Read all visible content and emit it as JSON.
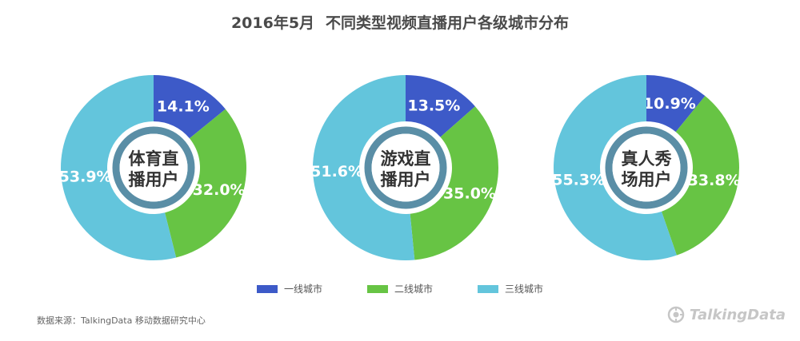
{
  "title": {
    "date": "2016年5月",
    "text": "不同类型视频直播用户各级城市分布"
  },
  "colors": {
    "tier1": "#3d5ac8",
    "tier2": "#67c444",
    "tier3": "#63c5dc",
    "ring": "#5a8ea6",
    "title": "#4a4a4a"
  },
  "chart_data": [
    {
      "type": "pie",
      "center_label": [
        "体育直",
        "播用户"
      ],
      "categories": [
        "一线城市",
        "二线城市",
        "三线城市"
      ],
      "values": [
        14.1,
        32.0,
        53.9
      ],
      "labels": [
        "14.1%",
        "32.0%",
        "53.9%"
      ]
    },
    {
      "type": "pie",
      "center_label": [
        "游戏直",
        "播用户"
      ],
      "categories": [
        "一线城市",
        "二线城市",
        "三线城市"
      ],
      "values": [
        13.5,
        35.0,
        51.6
      ],
      "labels": [
        "13.5%",
        "35.0%",
        "51.6%"
      ]
    },
    {
      "type": "pie",
      "center_label": [
        "真人秀",
        "场用户"
      ],
      "categories": [
        "一线城市",
        "二线城市",
        "三线城市"
      ],
      "values": [
        10.9,
        33.8,
        55.3
      ],
      "labels": [
        "10.9%",
        "33.8%",
        "55.3%"
      ]
    }
  ],
  "legend": [
    "一线城市",
    "二线城市",
    "三线城市"
  ],
  "source": "数据来源：TalkingData 移动数据研究中心",
  "logo": {
    "text": "TalkingData",
    "icon": "talkingdata-logo-icon"
  }
}
